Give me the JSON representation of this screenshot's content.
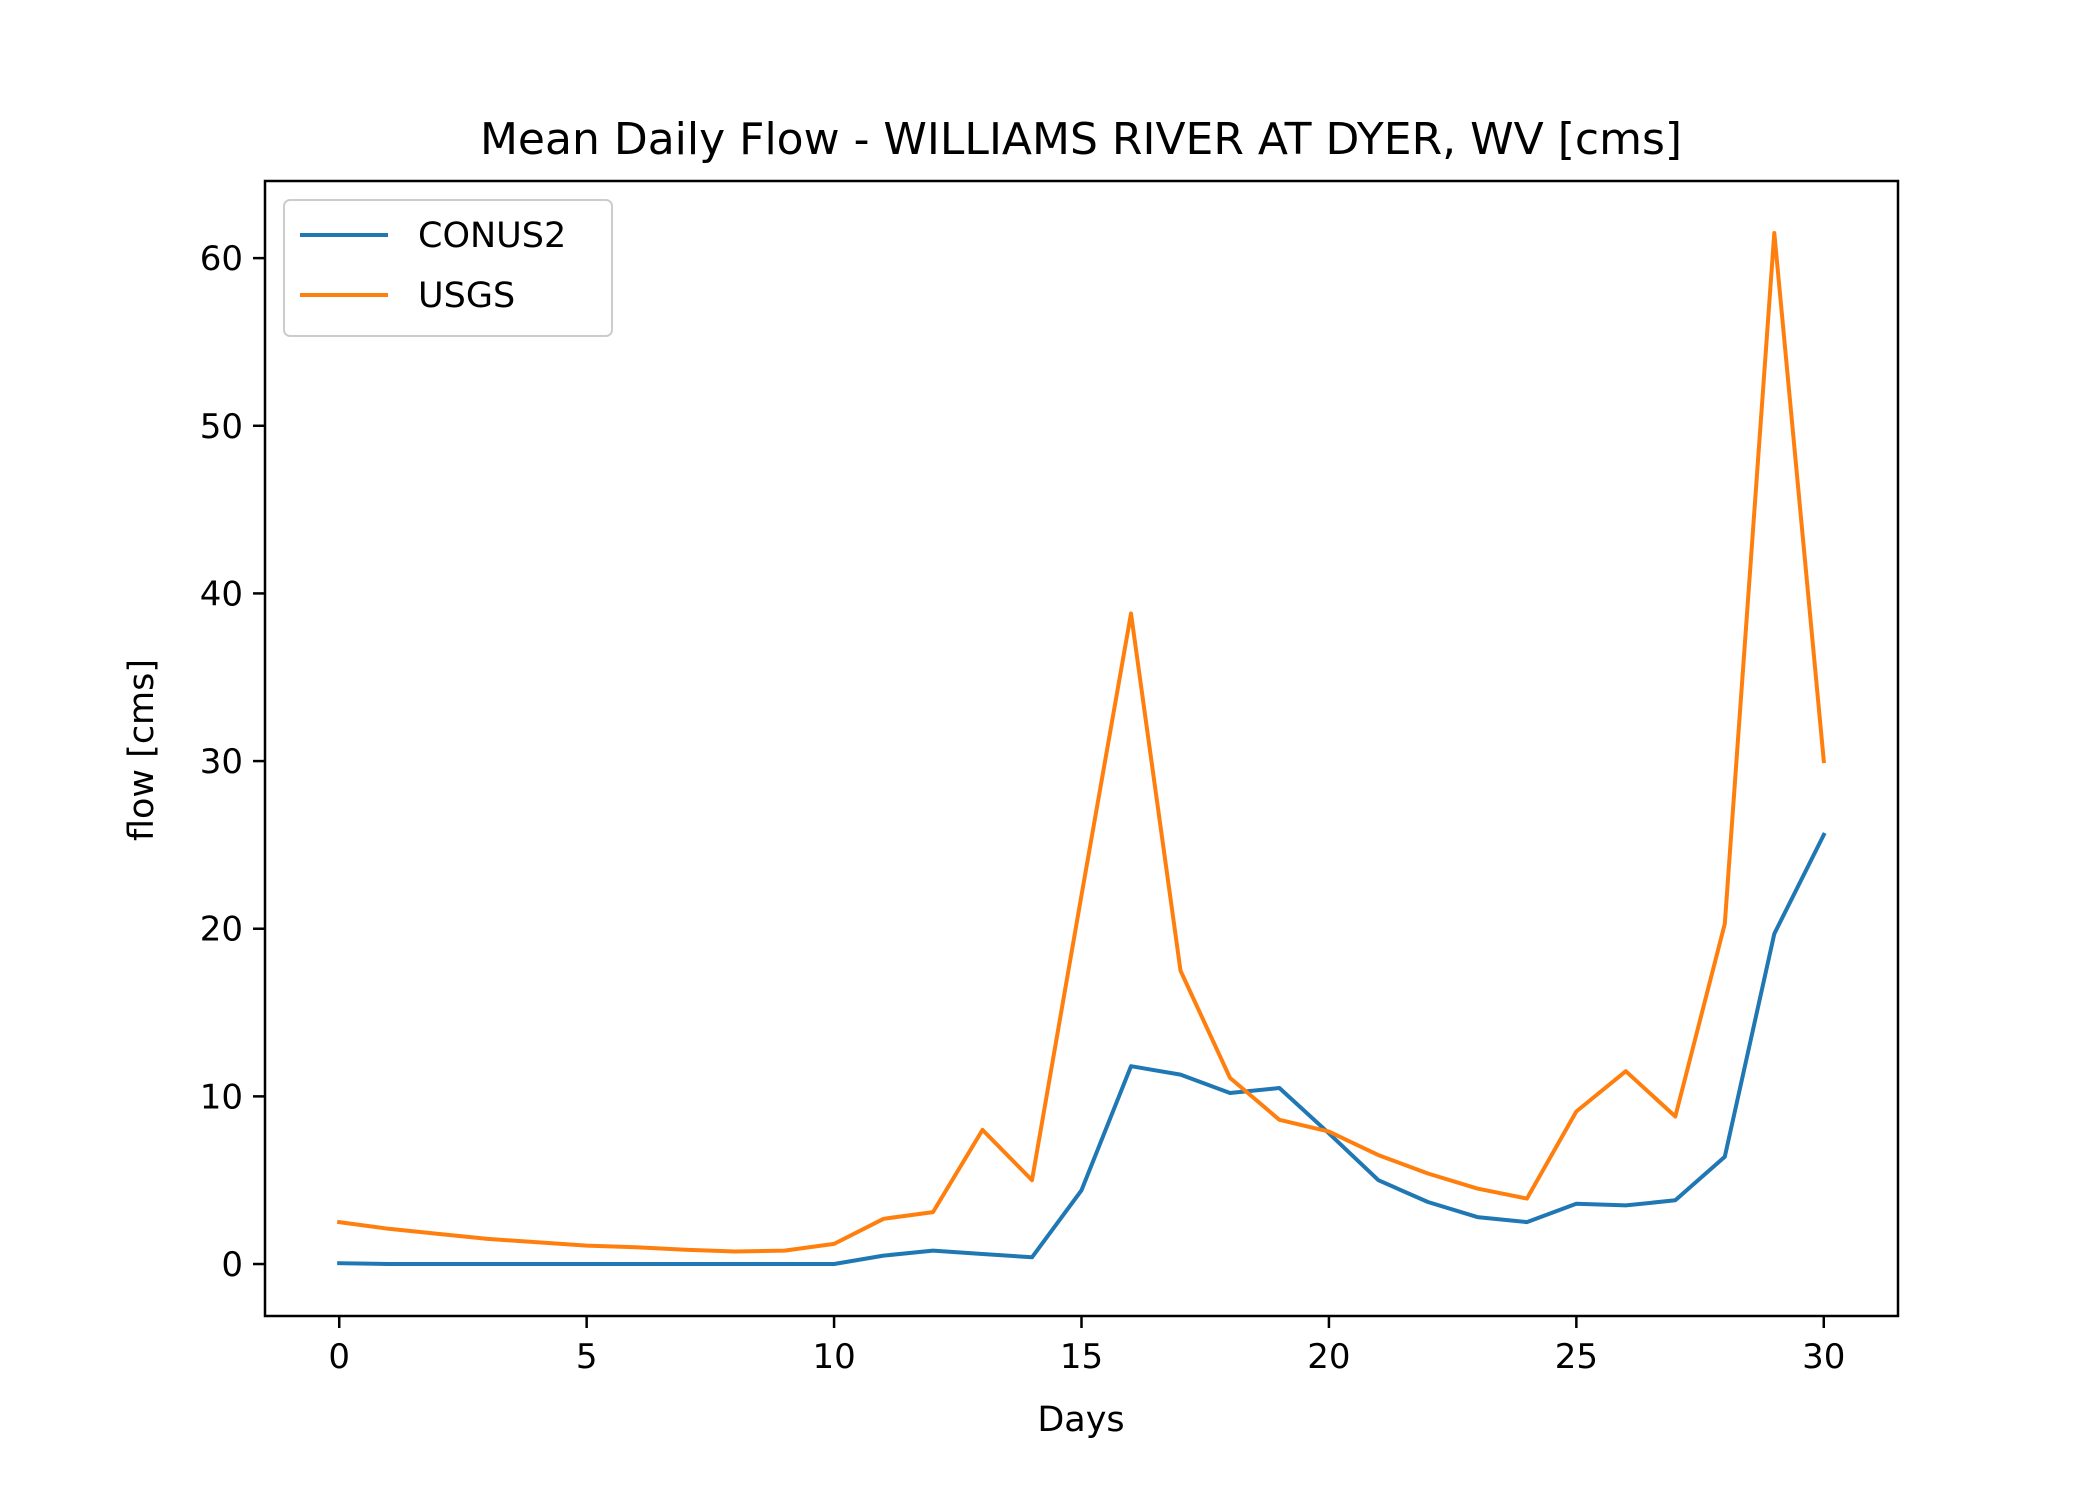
{
  "chart_data": {
    "type": "line",
    "title": "Mean Daily Flow - WILLIAMS RIVER AT DYER, WV [cms]",
    "xlabel": "Days",
    "ylabel": "flow [cms]",
    "xlim": [
      -1.5,
      31.5
    ],
    "ylim": [
      -3.1,
      64.6
    ],
    "x_ticks": [
      0,
      5,
      10,
      15,
      20,
      25,
      30
    ],
    "y_ticks": [
      0,
      10,
      20,
      30,
      40,
      50,
      60
    ],
    "grid": false,
    "legend_position": "upper-left",
    "x": [
      0,
      1,
      2,
      3,
      4,
      5,
      6,
      7,
      8,
      9,
      10,
      11,
      12,
      13,
      14,
      15,
      16,
      17,
      18,
      19,
      20,
      21,
      22,
      23,
      24,
      25,
      26,
      27,
      28,
      29,
      30
    ],
    "series": [
      {
        "name": "CONUS2",
        "color": "#1f77b4",
        "values": [
          0.05,
          0,
          0,
          0,
          0,
          0,
          0,
          0,
          0,
          0,
          0,
          0.5,
          0.8,
          0.6,
          0.4,
          4.4,
          11.8,
          11.3,
          10.2,
          10.5,
          7.8,
          5.0,
          3.7,
          2.8,
          2.5,
          3.6,
          3.5,
          3.8,
          6.4,
          19.7,
          25.6
        ]
      },
      {
        "name": "USGS",
        "color": "#ff7f0e",
        "values": [
          2.5,
          2.1,
          1.8,
          1.5,
          1.3,
          1.1,
          1.0,
          0.85,
          0.75,
          0.8,
          1.2,
          2.7,
          3.1,
          8.0,
          5.0,
          22.0,
          38.8,
          17.5,
          11.1,
          8.6,
          7.9,
          6.5,
          5.4,
          4.5,
          3.9,
          9.1,
          11.5,
          8.8,
          20.3,
          61.5,
          30.0
        ]
      }
    ]
  }
}
